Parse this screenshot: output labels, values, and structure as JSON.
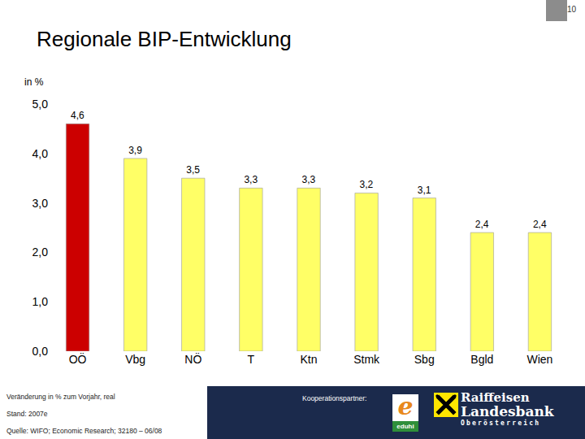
{
  "slide": {
    "page_number": "10",
    "footer_notes": [
      "Veränderung in % zum Vorjahr, real",
      "Stand: 2007e",
      "Quelle: WIFO; Economic Research; 32180 – 06/08"
    ],
    "partner_label": "Kooperationspartner:",
    "partner_logos": [
      {
        "mark": "e",
        "name": "eduhi"
      },
      {
        "lines": [
          "Raiffeisen",
          "Landesbank",
          "Oberösterreich"
        ]
      }
    ]
  },
  "chart_data": {
    "type": "bar",
    "title": "Regionale BIP-Entwicklung",
    "y_label": "in %",
    "categories": [
      "OÖ",
      "Vbg",
      "NÖ",
      "T",
      "Ktn",
      "Stmk",
      "Sbg",
      "Bgld",
      "Wien"
    ],
    "values": [
      4.6,
      3.9,
      3.5,
      3.3,
      3.3,
      3.2,
      3.1,
      2.4,
      2.4
    ],
    "value_labels": [
      "4,6",
      "3,9",
      "3,5",
      "3,3",
      "3,3",
      "3,2",
      "3,1",
      "2,4",
      "2,4"
    ],
    "colors": [
      "#cc0000",
      "#ffff66",
      "#ffff66",
      "#ffff66",
      "#ffff66",
      "#ffff66",
      "#ffff66",
      "#ffff66",
      "#ffff66"
    ],
    "ylim": [
      0,
      5
    ],
    "yticks": [
      {
        "value": 0,
        "label": "0,0"
      },
      {
        "value": 1,
        "label": "1,0"
      },
      {
        "value": 2,
        "label": "2,0"
      },
      {
        "value": 3,
        "label": "3,0"
      },
      {
        "value": 4,
        "label": "4,0"
      },
      {
        "value": 5,
        "label": "5,0"
      }
    ],
    "grid": false,
    "data_labels": true
  }
}
